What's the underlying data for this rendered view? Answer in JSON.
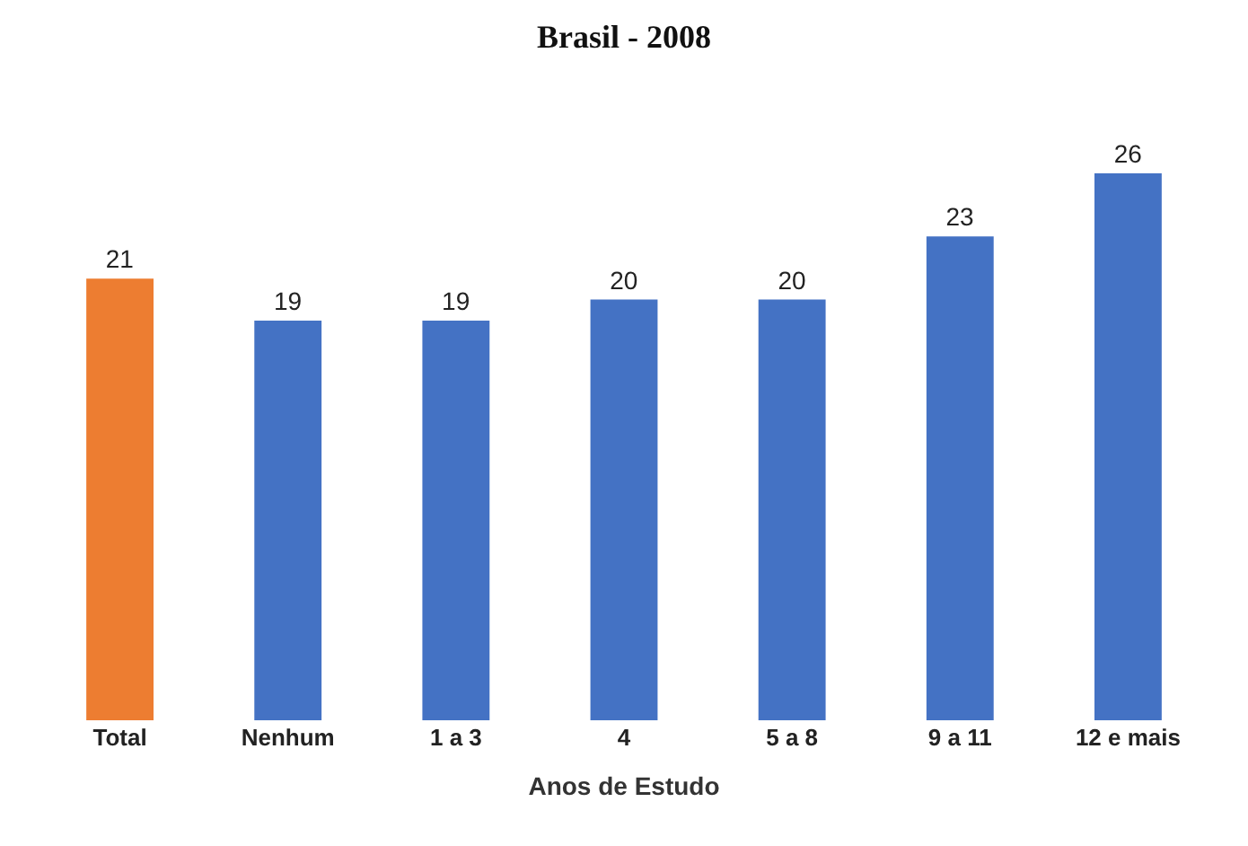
{
  "chart_data": {
    "type": "bar",
    "title": "Brasil - 2008",
    "xlabel": "Anos de Estudo",
    "categories": [
      "Total",
      "Nenhum",
      "1 a 3",
      "4",
      "5 a 8",
      "9 a 11",
      "12 e mais"
    ],
    "values": [
      21,
      19,
      19,
      20,
      20,
      23,
      26
    ],
    "colors": [
      "#ed7d31",
      "#4472c4",
      "#4472c4",
      "#4472c4",
      "#4472c4",
      "#4472c4",
      "#4472c4"
    ],
    "data_labels": true
  }
}
